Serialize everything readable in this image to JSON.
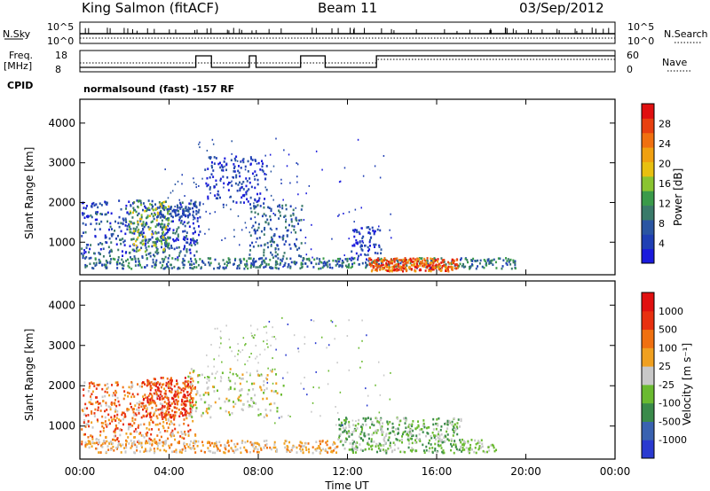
{
  "header": {
    "station": "King Salmon (fitACF)",
    "beam": "Beam 11",
    "date": "03/Sep/2012"
  },
  "top_panels": {
    "nsky_label": "N.Sky",
    "nsky_ticks": [
      "10^5",
      "10^0"
    ],
    "nsearch_label": "N.Search",
    "nsearch_ticks": [
      "10^5",
      "10^0"
    ],
    "freq_label": "Freq.",
    "freq_unit": "[MHz]",
    "freq_ticks": [
      "18",
      "8"
    ],
    "nave_label": "Nave",
    "nave_ticks": [
      "60",
      "0"
    ],
    "cpid_label": "CPID",
    "cpid_text": "normalsound (fast) -157 RF"
  },
  "chart_data": [
    {
      "type": "heatmap",
      "name": "power",
      "ylabel": "Slant Range [km]",
      "ylim": [
        180,
        4600
      ],
      "y_ticks": [
        "1000",
        "2000",
        "3000",
        "4000"
      ],
      "xlim_hours": [
        0,
        24
      ],
      "colorbar": {
        "label": "Power [dB]",
        "ticks": [
          "28",
          "24",
          "20",
          "16",
          "12",
          "8",
          "4"
        ],
        "colors": [
          "#1a1adc",
          "#1f3fb4",
          "#2a55a2",
          "#3a7a6a",
          "#3a9a4a",
          "#8ac430",
          "#e8c010",
          "#f0a010",
          "#f07010",
          "#e84010",
          "#e01010"
        ]
      }
    },
    {
      "type": "heatmap",
      "name": "velocity",
      "ylabel": "Slant Range [km]",
      "ylim": [
        180,
        4600
      ],
      "y_ticks": [
        "1000",
        "2000",
        "3000",
        "4000"
      ],
      "xlim_hours": [
        0,
        24
      ],
      "colorbar": {
        "label": "Velocity [m s⁻¹]",
        "ticks": [
          "1000",
          "500",
          "100",
          "25",
          "-25",
          "-100",
          "-500",
          "-1000"
        ],
        "colors": [
          "#2a3ad0",
          "#3a62b0",
          "#3a8a4a",
          "#6aba30",
          "#c8c8c8",
          "#f0a020",
          "#f07010",
          "#e83010",
          "#e01010"
        ]
      }
    }
  ],
  "xaxis": {
    "ticks": [
      "00:00",
      "04:00",
      "08:00",
      "12:00",
      "16:00",
      "20:00",
      "00:00"
    ],
    "label": "Time UT"
  }
}
